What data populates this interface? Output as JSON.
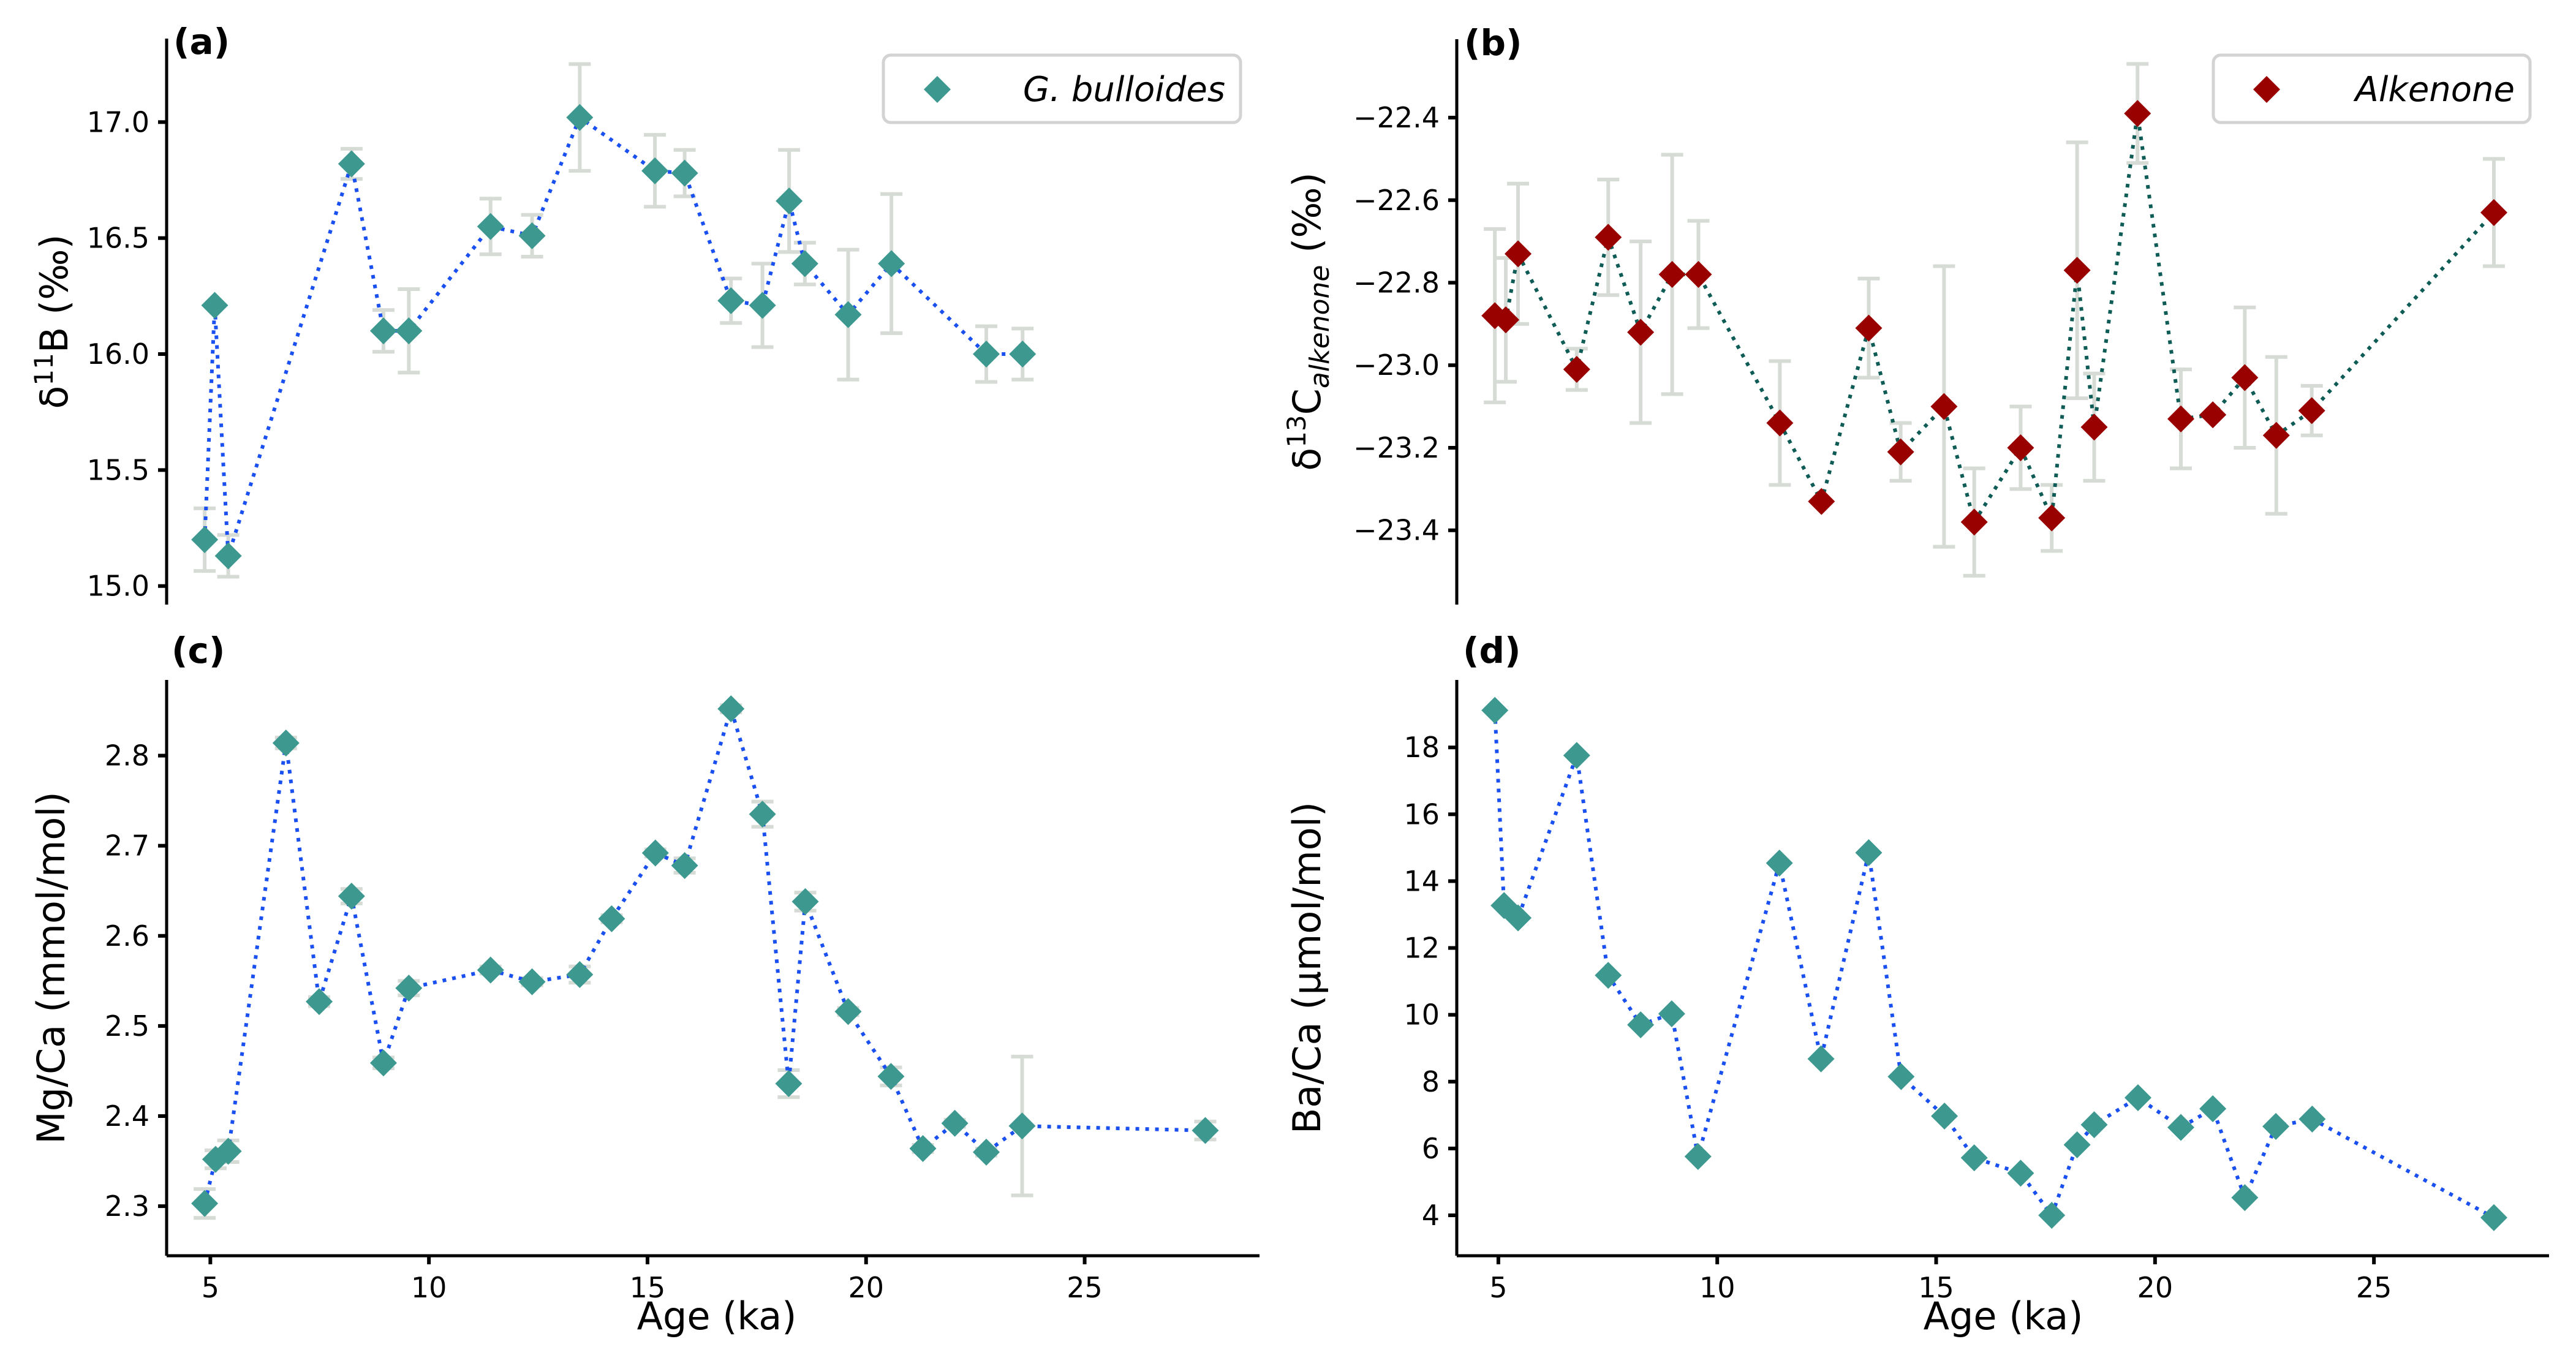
{
  "chart_data": [
    {
      "id": "a",
      "type": "scatter",
      "panel_label": "(a)",
      "title": "",
      "xlabel": "",
      "ylabel": "δ11B (‰)",
      "ylabel_parts": {
        "main": "δ",
        "sup": "11",
        "rest": "B (‰)"
      },
      "xlim": [
        4.0,
        29.0
      ],
      "ylim": [
        14.92,
        17.36
      ],
      "xticks": [],
      "yticks": [
        15.0,
        15.5,
        16.0,
        16.5,
        17.0
      ],
      "ytick_labels": [
        "15.0",
        "15.5",
        "16.0",
        "16.5",
        "17.0"
      ],
      "show_x_axis": false,
      "grid": false,
      "legend": {
        "label": "G. bulloides",
        "placement": "top-right"
      },
      "marker": "diamond",
      "marker_color": "#3d9990",
      "line_color": "#1a4ff0",
      "line_style": "dotted",
      "errorbar_color": "#d6dbd6",
      "series": [
        {
          "name": "G. bulloides",
          "x": [
            4.87,
            5.1,
            5.41,
            8.23,
            8.96,
            9.54,
            11.41,
            12.36,
            13.45,
            15.17,
            15.85,
            16.91,
            17.63,
            18.24,
            18.6,
            19.59,
            20.58,
            22.75,
            23.58
          ],
          "y": [
            15.2,
            16.21,
            15.13,
            16.82,
            16.1,
            16.1,
            16.55,
            16.51,
            17.02,
            16.79,
            16.78,
            16.23,
            16.21,
            16.66,
            16.39,
            16.17,
            16.39,
            16.0,
            16.0
          ],
          "yerr": [
            0.135,
            null,
            0.09,
            0.065,
            0.09,
            0.18,
            0.12,
            0.09,
            0.23,
            0.155,
            0.1,
            0.096,
            0.18,
            0.22,
            0.09,
            0.28,
            0.3,
            0.12,
            0.11
          ]
        }
      ]
    },
    {
      "id": "b",
      "type": "scatter",
      "panel_label": "(b)",
      "title": "",
      "xlabel": "",
      "ylabel": "δ13C alkenone (‰)",
      "ylabel_parts": {
        "main": "δ",
        "sup": "13",
        "rest": "C",
        "sub": "alkenone",
        "tail": " (‰)"
      },
      "xlim": [
        4.05,
        29.0
      ],
      "ylim": [
        -23.58,
        -22.21
      ],
      "xticks": [],
      "yticks": [
        -23.4,
        -23.2,
        -23.0,
        -22.8,
        -22.6,
        -22.4
      ],
      "ytick_labels": [
        "−23.4",
        "−23.2",
        "−23.0",
        "−22.8",
        "−22.6",
        "−22.4"
      ],
      "show_x_axis": false,
      "grid": false,
      "legend": {
        "label": "Alkenone",
        "placement": "top-right"
      },
      "marker": "diamond",
      "marker_color": "#990000",
      "line_color": "#0e5c55",
      "line_style": "dotted",
      "errorbar_color": "#d6dbd6",
      "series": [
        {
          "name": "Alkenone",
          "x": [
            4.92,
            5.17,
            5.45,
            6.79,
            7.51,
            8.25,
            8.97,
            9.57,
            11.43,
            12.38,
            13.46,
            14.19,
            15.18,
            15.87,
            16.93,
            17.64,
            18.22,
            18.61,
            19.6,
            20.59,
            21.32,
            22.05,
            22.77,
            23.58,
            27.74
          ],
          "y": [
            -22.88,
            -22.89,
            -22.73,
            -23.01,
            -22.69,
            -22.92,
            -22.78,
            -22.78,
            -23.14,
            -23.33,
            -22.91,
            -23.21,
            -23.1,
            -23.38,
            -23.2,
            -23.37,
            -22.77,
            -23.15,
            -22.39,
            -23.13,
            -23.12,
            -23.03,
            -23.17,
            -23.11,
            -22.63
          ],
          "yerr": [
            0.21,
            0.15,
            0.17,
            0.05,
            0.14,
            0.22,
            0.29,
            0.13,
            0.15,
            null,
            0.12,
            0.07,
            0.34,
            0.13,
            0.1,
            0.08,
            0.31,
            0.13,
            0.12,
            0.12,
            null,
            0.17,
            0.19,
            0.06,
            0.13
          ]
        }
      ]
    },
    {
      "id": "c",
      "type": "scatter",
      "panel_label": "(c)",
      "title": "",
      "xlabel": "Age (ka)",
      "ylabel": "Mg/Ca (mmol/mol)",
      "xlim": [
        4.0,
        29.0
      ],
      "ylim": [
        2.245,
        2.884
      ],
      "xticks": [
        5,
        10,
        15,
        20,
        25
      ],
      "xtick_labels": [
        "5",
        "10",
        "15",
        "20",
        "25"
      ],
      "yticks": [
        2.3,
        2.4,
        2.5,
        2.6,
        2.7,
        2.8
      ],
      "ytick_labels": [
        "2.3",
        "2.4",
        "2.5",
        "2.6",
        "2.7",
        "2.8"
      ],
      "show_x_axis": true,
      "grid": false,
      "marker": "diamond",
      "marker_color": "#3d9990",
      "line_color": "#1a4ff0",
      "line_style": "dotted",
      "errorbar_color": "#d6dbd6",
      "series": [
        {
          "name": "Mg/Ca",
          "x": [
            4.87,
            5.12,
            5.41,
            6.73,
            7.49,
            8.23,
            8.96,
            9.54,
            11.41,
            12.36,
            13.45,
            14.18,
            15.18,
            15.85,
            16.91,
            17.63,
            18.23,
            18.61,
            19.59,
            20.57,
            21.3,
            22.03,
            22.75,
            23.57,
            27.76
          ],
          "y": [
            2.303,
            2.352,
            2.361,
            2.814,
            2.527,
            2.644,
            2.459,
            2.542,
            2.562,
            2.549,
            2.557,
            2.619,
            2.692,
            2.678,
            2.852,
            2.735,
            2.436,
            2.638,
            2.516,
            2.444,
            2.364,
            2.392,
            2.36,
            2.389,
            2.384
          ],
          "yerr": [
            0.016,
            0.01,
            0.012,
            0.006,
            0.005,
            0.008,
            0.006,
            0.008,
            0.004,
            0.004,
            0.009,
            0.004,
            0.004,
            0.008,
            0.004,
            0.014,
            0.015,
            0.01,
            0.004,
            0.01,
            0.004,
            0.004,
            0.004,
            0.077,
            0.01
          ]
        }
      ]
    },
    {
      "id": "d",
      "type": "scatter",
      "panel_label": "(d)",
      "title": "",
      "xlabel": "Age (ka)",
      "ylabel": "Ba/Ca (µmol/mol)",
      "xlim": [
        4.05,
        29.0
      ],
      "ylim": [
        2.79,
        20.02
      ],
      "xticks": [
        5,
        10,
        15,
        20,
        25
      ],
      "xtick_labels": [
        "5",
        "10",
        "15",
        "20",
        "25"
      ],
      "yticks": [
        4,
        6,
        8,
        10,
        12,
        14,
        16,
        18
      ],
      "ytick_labels": [
        "4",
        "6",
        "8",
        "10",
        "12",
        "14",
        "16",
        "18"
      ],
      "show_x_axis": true,
      "grid": false,
      "marker": "diamond",
      "marker_color": "#3d9990",
      "line_color": "#1a4ff0",
      "line_style": "dotted",
      "errorbar_color": "#d6dbd6",
      "series": [
        {
          "name": "Ba/Ca",
          "x": [
            4.92,
            5.13,
            5.45,
            6.79,
            7.51,
            8.25,
            8.96,
            9.56,
            11.42,
            12.37,
            13.46,
            14.2,
            15.19,
            15.87,
            16.93,
            17.64,
            18.22,
            18.61,
            19.61,
            20.59,
            21.32,
            22.05,
            22.76,
            23.59,
            27.74
          ],
          "y": [
            19.11,
            13.27,
            12.9,
            17.76,
            11.18,
            9.7,
            10.03,
            5.76,
            14.54,
            8.68,
            14.85,
            8.15,
            6.97,
            5.72,
            5.26,
            4.0,
            6.11,
            6.71,
            7.52,
            6.63,
            7.19,
            4.53,
            6.66,
            6.88,
            3.93
          ],
          "yerr": null
        }
      ]
    }
  ]
}
